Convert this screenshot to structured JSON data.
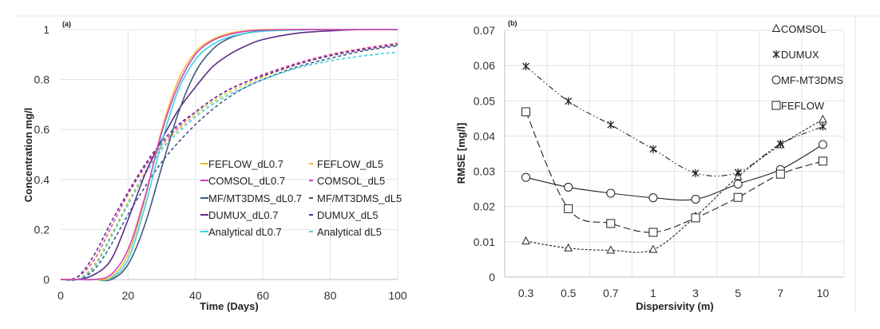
{
  "chart_data": [
    {
      "type": "line",
      "panel_label": "(a)",
      "xlabel": "Time (Days)",
      "ylabel": "Concentration mg/l",
      "xlim": [
        0,
        100
      ],
      "ylim": [
        0,
        1
      ],
      "xticks": [
        "0",
        "20",
        "40",
        "60",
        "80",
        "100"
      ],
      "yticks": [
        "0",
        "0.2",
        "0.4",
        "0.6",
        "0.8",
        "1"
      ],
      "grid": true,
      "legend_position": "bottom-right inside",
      "x": [
        0,
        5,
        10,
        15,
        20,
        25,
        30,
        35,
        40,
        45,
        50,
        55,
        60,
        70,
        80,
        90,
        100
      ],
      "series": [
        {
          "name": "FEFLOW_dL0.7",
          "color": "#f0be2c",
          "style": "solid",
          "values": [
            0,
            0,
            0,
            0.01,
            0.1,
            0.32,
            0.6,
            0.8,
            0.91,
            0.96,
            0.985,
            0.995,
            1,
            1,
            1,
            1,
            1
          ]
        },
        {
          "name": "FEFLOW_dL5",
          "color": "#f0be2c",
          "style": "dashed",
          "values": [
            0,
            0,
            0.06,
            0.18,
            0.31,
            0.43,
            0.53,
            0.6,
            0.66,
            0.71,
            0.75,
            0.78,
            0.81,
            0.86,
            0.9,
            0.925,
            0.945
          ]
        },
        {
          "name": "COMSOL_dL0.7",
          "color": "#d43fc4",
          "style": "solid",
          "values": [
            0,
            0,
            0,
            0.02,
            0.12,
            0.33,
            0.59,
            0.78,
            0.9,
            0.955,
            0.98,
            0.993,
            0.998,
            1,
            1,
            1,
            1
          ]
        },
        {
          "name": "COMSOL_dL5",
          "color": "#d43fc4",
          "style": "dashed",
          "values": [
            0,
            0.01,
            0.08,
            0.21,
            0.34,
            0.45,
            0.54,
            0.61,
            0.67,
            0.72,
            0.76,
            0.79,
            0.82,
            0.865,
            0.9,
            0.925,
            0.945
          ]
        },
        {
          "name": "MF/MT3DMS_dL0.7",
          "color": "#3e5a82",
          "style": "solid",
          "values": [
            0,
            0,
            0,
            0,
            0.06,
            0.22,
            0.45,
            0.67,
            0.83,
            0.92,
            0.965,
            0.985,
            0.995,
            1,
            1,
            1,
            1
          ]
        },
        {
          "name": "MF/MT3DMS_dL5",
          "color": "#3e5a82",
          "style": "dashed",
          "values": [
            0,
            0,
            0.04,
            0.14,
            0.26,
            0.37,
            0.47,
            0.55,
            0.62,
            0.68,
            0.73,
            0.77,
            0.8,
            0.85,
            0.885,
            0.915,
            0.935
          ]
        },
        {
          "name": "DUMUX_dL0.7",
          "color": "#5b2d86",
          "style": "solid",
          "values": [
            0,
            0,
            0.02,
            0.08,
            0.24,
            0.42,
            0.56,
            0.68,
            0.77,
            0.85,
            0.9,
            0.935,
            0.96,
            0.985,
            0.995,
            1,
            1
          ]
        },
        {
          "name": "DUMUX_dL5",
          "color": "#5b2d86",
          "style": "dashed",
          "values": [
            0,
            0.01,
            0.1,
            0.23,
            0.35,
            0.46,
            0.55,
            0.62,
            0.67,
            0.72,
            0.76,
            0.79,
            0.815,
            0.86,
            0.895,
            0.92,
            0.94
          ]
        },
        {
          "name": "Analytical dL0.7",
          "color": "#3bd3e0",
          "style": "solid",
          "values": [
            0,
            0,
            0,
            0.005,
            0.08,
            0.29,
            0.55,
            0.76,
            0.88,
            0.94,
            0.97,
            0.985,
            0.993,
            0.998,
            1,
            1,
            1
          ]
        },
        {
          "name": "Analytical dL5",
          "color": "#3bd3e0",
          "style": "dashed",
          "values": [
            0,
            0,
            0.05,
            0.17,
            0.3,
            0.42,
            0.52,
            0.59,
            0.65,
            0.7,
            0.74,
            0.77,
            0.8,
            0.845,
            0.875,
            0.895,
            0.91
          ]
        }
      ]
    },
    {
      "type": "line",
      "panel_label": "(b)",
      "xlabel": "Dispersivity (m)",
      "ylabel": "RMSE [mg/l]",
      "categories": [
        "0.3",
        "0.5",
        "0.7",
        "1",
        "3",
        "5",
        "7",
        "10"
      ],
      "ylim": [
        0,
        0.07
      ],
      "yticks": [
        "0",
        "0.01",
        "0.02",
        "0.03",
        "0.04",
        "0.05",
        "0.06",
        "0.07"
      ],
      "grid": true,
      "legend_position": "top-right",
      "series": [
        {
          "name": "COMSOL",
          "marker": "triangle",
          "dash": "short-dash",
          "values": [
            0.0102,
            0.0082,
            0.0076,
            0.0078,
            0.0172,
            0.0285,
            0.0375,
            0.0447
          ]
        },
        {
          "name": "DUMUX",
          "marker": "asterisk",
          "dash": "dash-dot-dot",
          "values": [
            0.0598,
            0.0499,
            0.0432,
            0.0363,
            0.0295,
            0.0297,
            0.0378,
            0.0427
          ]
        },
        {
          "name": "MF-MT3DMS",
          "marker": "circle",
          "dash": "solid",
          "values": [
            0.0283,
            0.0255,
            0.0238,
            0.0225,
            0.0221,
            0.0264,
            0.0305,
            0.0376
          ]
        },
        {
          "name": "FEFLOW",
          "marker": "square",
          "dash": "long-dash",
          "values": [
            0.0469,
            0.0194,
            0.0152,
            0.0127,
            0.0168,
            0.0226,
            0.0292,
            0.0329
          ]
        }
      ]
    }
  ]
}
